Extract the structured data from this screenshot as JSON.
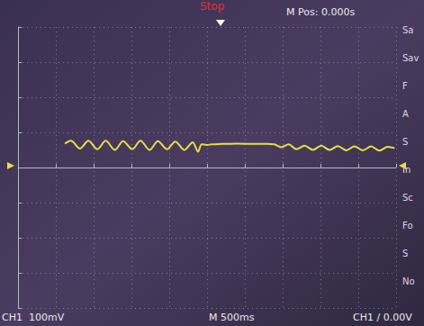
{
  "chart_data": {
    "type": "line",
    "x": [
      -1.88,
      -1.8,
      -1.68,
      -1.57,
      -1.45,
      -1.34,
      -1.22,
      -1.11,
      -0.99,
      -0.88,
      -0.76,
      -0.65,
      -0.53,
      -0.42,
      -0.3,
      -0.19,
      -0.12,
      -0.07,
      0.0,
      0.06,
      0.2,
      0.4,
      0.6,
      0.8,
      0.89,
      0.98,
      1.08,
      1.18,
      1.29,
      1.4,
      1.51,
      1.62,
      1.73,
      1.84,
      1.95,
      2.06,
      2.17,
      2.28,
      2.39,
      2.48
    ],
    "values": [
      68,
      76,
      54,
      76,
      52,
      76,
      50,
      75,
      52,
      76,
      50,
      75,
      52,
      74,
      50,
      72,
      45,
      66,
      64,
      66,
      67,
      68,
      67,
      67,
      66,
      58,
      66,
      52,
      62,
      50,
      62,
      50,
      61,
      49,
      60,
      49,
      60,
      48,
      59,
      55
    ],
    "color": "#e8e040",
    "xlim": [
      -2.5,
      2.5
    ],
    "xticks": [
      -2.5,
      -2.0,
      -1.5,
      -1.0,
      -0.5,
      0,
      0.5,
      1.0,
      1.5,
      2.0,
      2.5
    ],
    "ylim": [
      -400,
      400
    ],
    "yticks": [
      -400,
      -300,
      -200,
      -100,
      0,
      100,
      200,
      300,
      400
    ],
    "grid": true,
    "tick_labels": false,
    "annotations": [
      "Stop",
      "M Pos: 0.000s",
      "CH1  100mV",
      "M 500ms",
      "CH1 ∕ 0.00V"
    ],
    "menu": [
      "Sa",
      "Sav",
      "F",
      "A",
      "S",
      "In",
      "Sc",
      "Fo",
      "S",
      "No"
    ]
  }
}
